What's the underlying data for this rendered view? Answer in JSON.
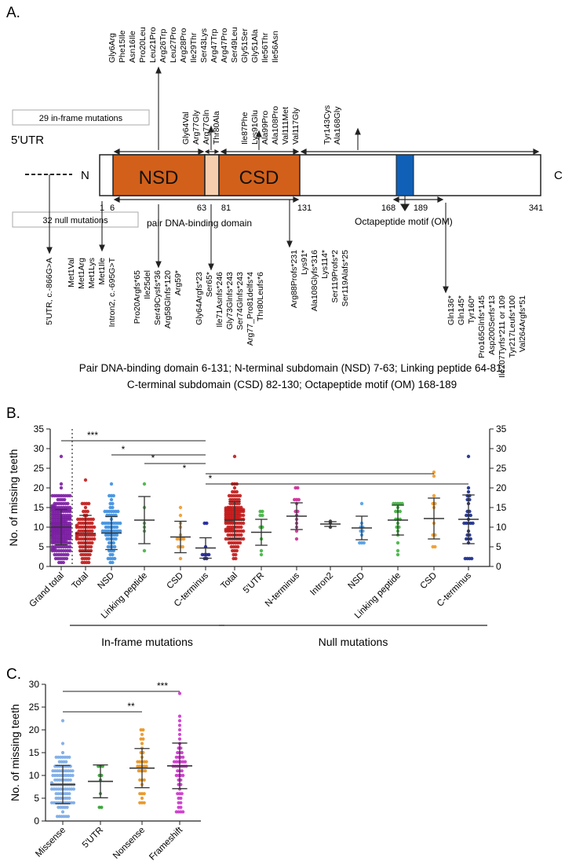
{
  "panel_labels": {
    "a": "A.",
    "b": "B.",
    "c": "C."
  },
  "protein": {
    "utr_label": "5'UTR",
    "n_label": "N",
    "c_label": "C",
    "nsd_label": "NSD",
    "csd_label": "CSD",
    "colors": {
      "domain": "#d2601a",
      "linker": "#f7cfae",
      "octa": "#1060b8",
      "box": "#ffffff"
    },
    "positions": [
      "1",
      "6",
      "63",
      "81",
      "131",
      "168",
      "189",
      "341"
    ],
    "inframe_box": "29 in-frame mutations",
    "null_box": "32 null mutations",
    "pair_domain_label": "pair DNA-binding domain",
    "octa_label": "Octapeptide motif (OM)"
  },
  "mutations_above": [
    {
      "group": "nsd",
      "items": [
        "Gly6Arg",
        "Phe15Ile",
        "Asn16Ile",
        "Pro20Leu",
        "Leu21Pro",
        "Arg26Trp",
        "Leu27Pro",
        "Arg28Pro",
        "Ile29Thr",
        "Ser43Lys",
        "Arg47Trp",
        "Arg47Pro",
        "Ser49Leu",
        "Gly51Ser",
        "Gly51Ala",
        "Ile56Thr",
        "Ile56Asn"
      ]
    },
    {
      "group": "link",
      "items": [
        "Gly64Val",
        "Arg77Gly",
        "Arg77Gln",
        "Thr80Ala"
      ]
    },
    {
      "group": "csd",
      "items": [
        "Ile87Phe",
        "Lys91Glu",
        "Ala99Pro",
        "Ala108Pro",
        "Val111Met",
        "Val117Gly"
      ]
    },
    {
      "group": "cterm",
      "items": [
        "Tyr143Cys",
        "Ala168Gly"
      ]
    }
  ],
  "mutations_below": [
    {
      "group": "utr",
      "items": [
        "5'UTR, c.-866G>A"
      ]
    },
    {
      "group": "met",
      "items": [
        "Met1Val",
        "Met1Arg",
        "Met1Lys",
        "Met1Ile",
        "Intron2, c.-695G>T"
      ]
    },
    {
      "group": "nsd",
      "items": [
        "Pro20Argfs*65",
        "Ile25del",
        "Ser49Cysfs*36",
        "Arg58Glnfs*120",
        "Arg59*"
      ]
    },
    {
      "group": "link",
      "items": [
        "Gly64Argfs*23",
        "Ser65*",
        "Ile71Asnfs*246",
        "Gly73Glnfs*243",
        "Ser74Glnfs*243",
        "Arg77_Pro81delfs*4",
        "Thr80Leufs*6"
      ]
    },
    {
      "group": "csd",
      "items": [
        "Arg88Profs*231",
        "Lys91*",
        "Ala108Glyfs*316",
        "Lys114*",
        "Ser119Profs*2",
        "Ser119Alafs*25"
      ]
    },
    {
      "group": "cterm",
      "items": [
        "Gln136*",
        "Gln145*",
        "Tyr160*",
        "Pro165Glnfs*145",
        "Asp200Serfs*13",
        "Ile207Tyrfs*211 or 109",
        "Tyr217Leufs*100",
        "Val264Argfs*51"
      ]
    }
  ],
  "legend_caption": {
    "line1": "Pair DNA-binding domain 6-131; N-terminal subdomain (NSD) 7-63;  Linking peptide 64-81;",
    "line2": "C-terminal subdomain (CSD) 82-130;  Octapeptide motif (OM) 168-189"
  },
  "chart_data": [
    {
      "type": "scatter",
      "panel": "B",
      "ylabel": "No. of missing teeth",
      "ylim": [
        0,
        35
      ],
      "yticks": [
        "0",
        "5",
        "10",
        "15",
        "20",
        "25",
        "30",
        "35"
      ],
      "categories": [
        "Grand total",
        "Total",
        "NSD",
        "Linking peptide",
        "CSD",
        "C-terminus",
        "Total",
        "5'UTR",
        "N-terminus",
        "Intron2",
        "NSD",
        "Linking peptide",
        "CSD",
        "C-terminus"
      ],
      "colors": [
        "#7b1fa2",
        "#c21b1b",
        "#3d8fe0",
        "#3fb33f",
        "#f09a2a",
        "#1a1f9a",
        "#c21b1b",
        "#3fb33f",
        "#cc2a96",
        "#333333",
        "#4f9ee8",
        "#3fb33f",
        "#f09a2a",
        "#1a2a8a"
      ],
      "n": [
        240,
        95,
        75,
        6,
        13,
        9,
        150,
        9,
        14,
        3,
        10,
        20,
        11,
        30
      ],
      "mean": [
        10.0,
        8.4,
        8.5,
        11.8,
        7.5,
        4.7,
        11.8,
        8.7,
        12.8,
        10.8,
        9.8,
        11.8,
        12.2,
        12.0
      ],
      "sd": [
        4.5,
        4.6,
        4.2,
        6.0,
        4.0,
        2.6,
        4.7,
        3.3,
        3.4,
        0.6,
        3.0,
        3.8,
        5.2,
        6.2
      ],
      "min": [
        1,
        1,
        1,
        4,
        2,
        2,
        2,
        3,
        7,
        10,
        6,
        3,
        5,
        2
      ],
      "max": [
        28,
        22,
        21,
        21,
        15,
        11,
        28,
        14,
        20,
        11.5,
        16,
        16,
        24,
        28
      ],
      "significance": [
        {
          "from": 0,
          "to": 5,
          "label": "***"
        },
        {
          "from": 2,
          "to": 5,
          "label": "*"
        },
        {
          "from": 3,
          "to": 5,
          "label": "*"
        },
        {
          "from": 5,
          "to": 12,
          "label": "*"
        },
        {
          "from": 5,
          "to": 13,
          "label": "*"
        }
      ],
      "groups": [
        {
          "label": "In-frame mutations",
          "from": 1,
          "to": 5
        },
        {
          "label": "Null mutations",
          "from": 6,
          "to": 13
        }
      ]
    },
    {
      "type": "scatter",
      "panel": "C",
      "ylabel": "No. of missing teeth",
      "ylim": [
        0,
        30
      ],
      "yticks": [
        "0",
        "5",
        "10",
        "15",
        "20",
        "25",
        "30"
      ],
      "categories": [
        "Missense",
        "5'UTR",
        "Nonsense",
        "Frameshift"
      ],
      "colors": [
        "#7aaae6",
        "#2e9e2e",
        "#e8921e",
        "#cc33cc"
      ],
      "n": [
        110,
        9,
        35,
        55
      ],
      "mean": [
        8.0,
        8.7,
        11.6,
        12.1
      ],
      "sd": [
        4.2,
        3.6,
        4.3,
        5.0
      ],
      "min": [
        1,
        3,
        4,
        2
      ],
      "max": [
        22,
        12,
        20,
        28
      ],
      "significance": [
        {
          "from": 0,
          "to": 3,
          "label": "***"
        },
        {
          "from": 0,
          "to": 2,
          "label": "**"
        }
      ]
    }
  ]
}
